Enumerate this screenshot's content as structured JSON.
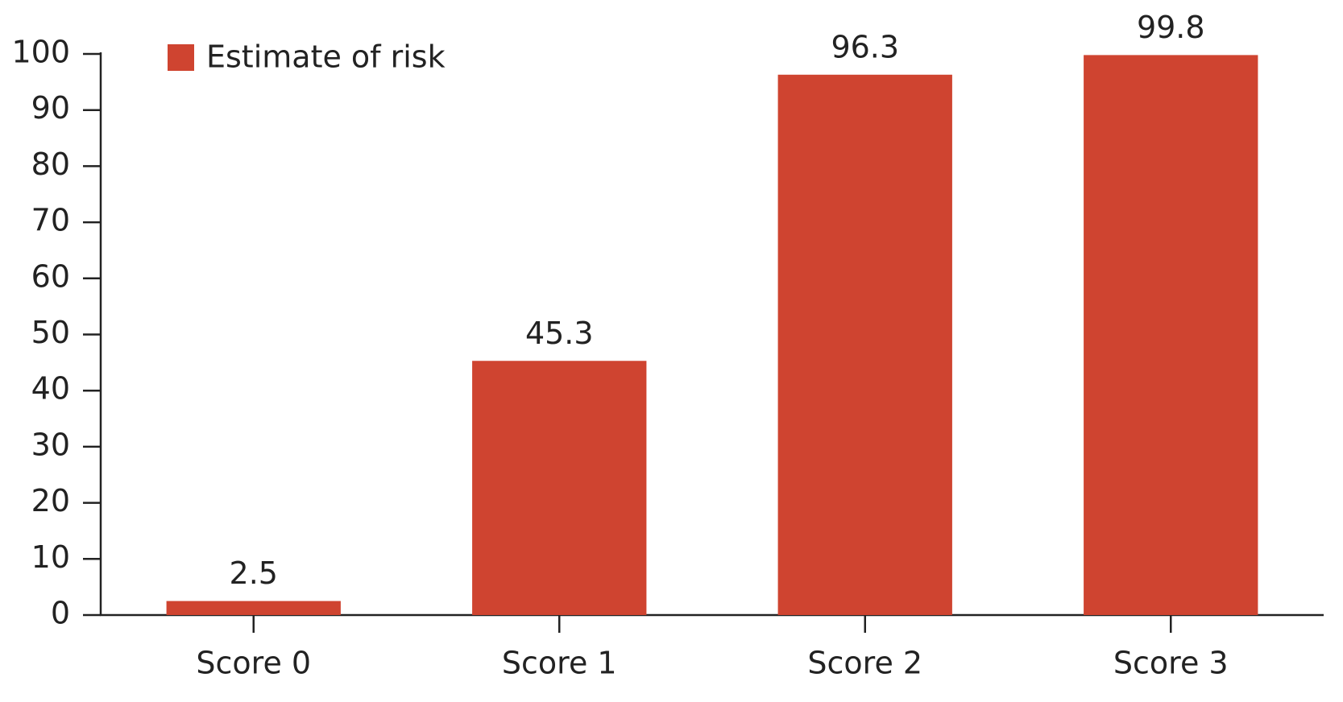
{
  "chart_data": {
    "type": "bar",
    "categories": [
      "Score 0",
      "Score 1",
      "Score 2",
      "Score 3"
    ],
    "series": [
      {
        "name": "Estimate of risk",
        "color": "#cf4430",
        "values": [
          2.5,
          45.3,
          96.3,
          99.8
        ]
      }
    ],
    "ylim": [
      0,
      100
    ],
    "yticks": [
      0,
      10,
      20,
      30,
      40,
      50,
      60,
      70,
      80,
      90,
      100
    ],
    "grid": false,
    "legend": "top-left"
  }
}
